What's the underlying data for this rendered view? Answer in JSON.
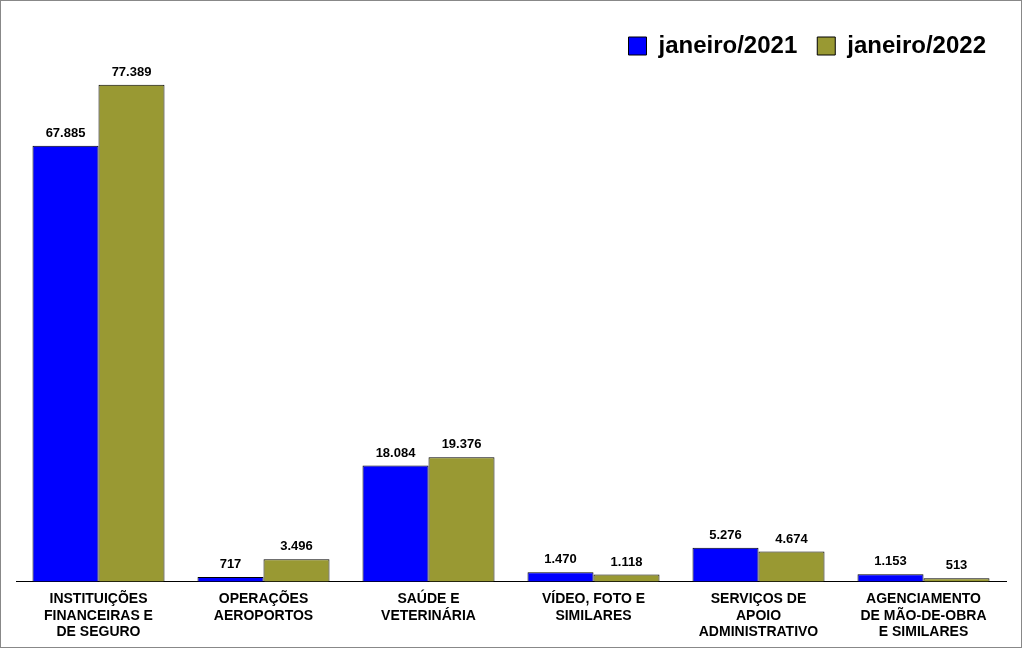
{
  "chart_data": {
    "type": "bar",
    "categories": [
      "INSTITUIÇÕES FINANCEIRAS E DE SEGURO",
      "OPERAÇÕES AEROPORTOS",
      "SAÚDE E VETERINÁRIA",
      "VÍDEO, FOTO E SIMILARES",
      "SERVIÇOS DE APOIO ADMINISTRATIVO",
      "AGENCIAMENTO DE MÃO-DE-OBRA E SIMILARES"
    ],
    "series": [
      {
        "name": "janeiro/2021",
        "color": "#0000ff",
        "values": [
          67885,
          717,
          18084,
          1470,
          5276,
          1153
        ],
        "value_labels": [
          "67.885",
          "717",
          "18.084",
          "1.470",
          "5.276",
          "1.153"
        ]
      },
      {
        "name": "janeiro/2022",
        "color": "#999933",
        "values": [
          77389,
          3496,
          19376,
          1118,
          4674,
          513
        ],
        "value_labels": [
          "77.389",
          "3.496",
          "19.376",
          "1.118",
          "4.674",
          "513"
        ]
      }
    ],
    "legend": "top right",
    "grid": false
  }
}
